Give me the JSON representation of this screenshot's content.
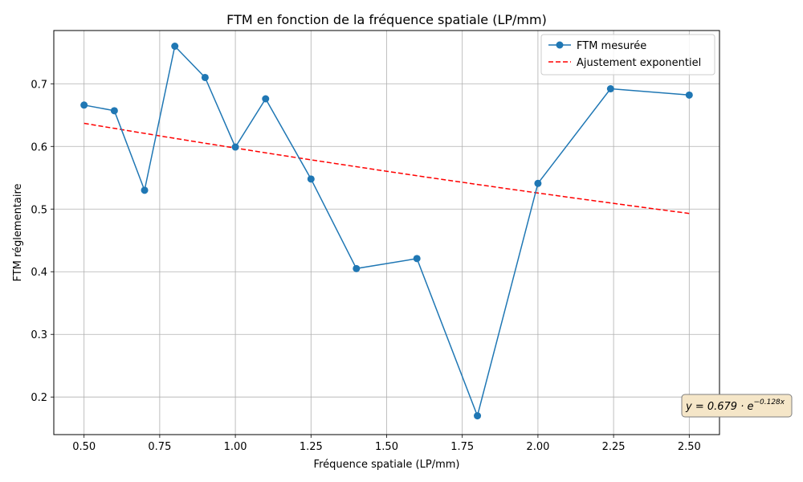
{
  "chart_data": {
    "type": "line",
    "title": "FTM en fonction de la fréquence spatiale (LP/mm)",
    "xlabel": "Fréquence spatiale (LP/mm)",
    "ylabel": "FTM réglementaire",
    "xlim": [
      0.4,
      2.6
    ],
    "ylim": [
      0.14,
      0.785
    ],
    "xticks": [
      0.5,
      0.75,
      1.0,
      1.25,
      1.5,
      1.75,
      2.0,
      2.25,
      2.5
    ],
    "xtick_labels": [
      "0.50",
      "0.75",
      "1.00",
      "1.25",
      "1.50",
      "1.75",
      "2.00",
      "2.25",
      "2.50"
    ],
    "yticks": [
      0.2,
      0.3,
      0.4,
      0.5,
      0.6,
      0.7
    ],
    "ytick_labels": [
      "0.2",
      "0.3",
      "0.4",
      "0.5",
      "0.6",
      "0.7"
    ],
    "grid": true,
    "legend_position": "top-right",
    "series": [
      {
        "name": "FTM mesurée",
        "style": "solid-line-with-circle-markers",
        "color": "#1f77b4",
        "x": [
          0.5,
          0.6,
          0.7,
          0.8,
          0.9,
          1.0,
          1.1,
          1.25,
          1.4,
          1.6,
          1.8,
          2.0,
          2.24,
          2.5
        ],
        "y": [
          0.666,
          0.657,
          0.53,
          0.76,
          0.71,
          0.599,
          0.676,
          0.548,
          0.405,
          0.421,
          0.17,
          0.541,
          0.692,
          0.682
        ]
      },
      {
        "name": "Ajustement exponentiel",
        "style": "dashed-line",
        "color": "#ff0000",
        "fit": {
          "a": 0.679,
          "b": -0.128,
          "x_range": [
            0.5,
            2.5
          ]
        }
      }
    ],
    "annotation": {
      "prefix": "y = 0.679 · e",
      "exponent": "−0.128x",
      "position": "bottom-right",
      "box_fill": "#f5e6c8",
      "box_stroke": "#7f7f7f"
    }
  }
}
